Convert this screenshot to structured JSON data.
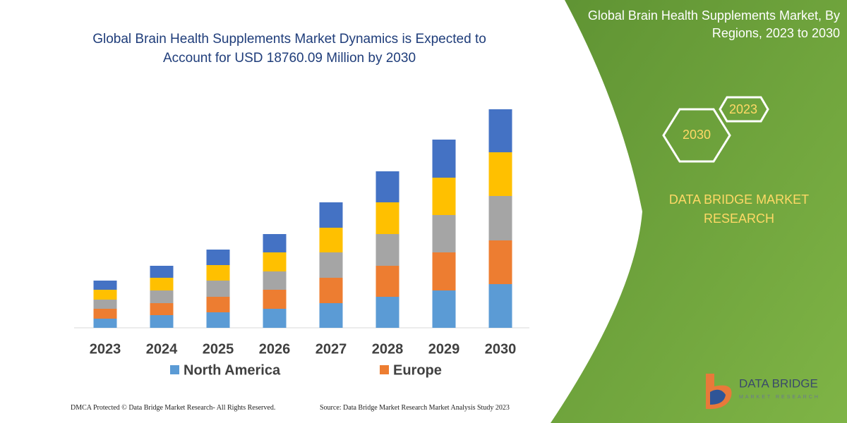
{
  "chart_data": {
    "type": "stacked-bar",
    "title": "Global Brain Health Supplements Market Dynamics is Expected to Account for USD 18760.09 Million by 2030",
    "categories": [
      "2023",
      "2024",
      "2025",
      "2026",
      "2027",
      "2028",
      "2029",
      "2030"
    ],
    "series": [
      {
        "name": "North America",
        "color": "#5b9bd5",
        "values": [
          13,
          18,
          22,
          27,
          35,
          44,
          53,
          62
        ]
      },
      {
        "name": "Europe",
        "color": "#ed7d31",
        "values": [
          14,
          17,
          22,
          27,
          36,
          44,
          54,
          62
        ]
      },
      {
        "color": "#a5a5a5",
        "values": [
          13,
          18,
          23,
          26,
          36,
          45,
          53,
          63
        ]
      },
      {
        "color": "#ffc000",
        "values": [
          14,
          18,
          22,
          27,
          35,
          45,
          53,
          62
        ]
      },
      {
        "color": "#4472c4",
        "values": [
          13,
          17,
          22,
          26,
          36,
          44,
          54,
          61
        ]
      }
    ],
    "ylim": [
      0,
      310
    ]
  },
  "panel": {
    "title": "Global Brain Health Supplements Market, By Regions, 2023 to 2030",
    "hex_labels": [
      "2023",
      "2030"
    ],
    "brand_lines": [
      "DATA BRIDGE MARKET",
      "RESEARCH"
    ],
    "logo_name": "DATA BRIDGE",
    "logo_sub": "MARKET RESEARCH"
  },
  "footer": {
    "left": "DMCA Protected © Data Bridge Market Research- All Rights Reserved.",
    "right": "Source: Data Bridge Market Research Market Analysis Study 2023"
  }
}
